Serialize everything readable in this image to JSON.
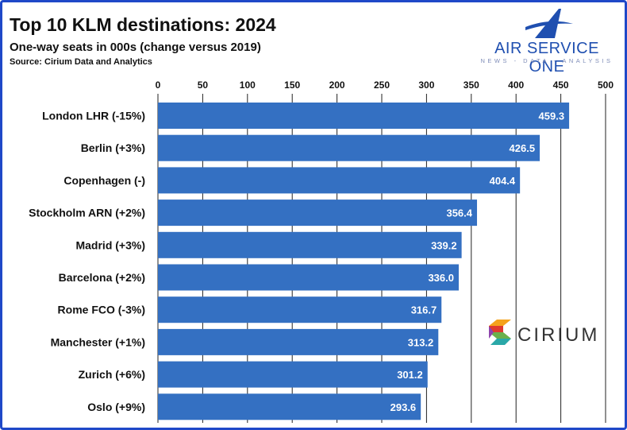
{
  "header": {
    "title": "Top 10 KLM destinations: 2024",
    "subtitle": "One-way seats in 000s (change versus 2019)",
    "source": "Source: Cirium Data and Analytics"
  },
  "logos": {
    "air_service_one": {
      "name": "AIR SERVICE ONE",
      "tagline": "NEWS - DATA - ANALYSIS",
      "color": "#1f4fb0"
    },
    "cirium": {
      "name": "CIRIUM"
    }
  },
  "colors": {
    "bar": "#3470c2",
    "frame": "#1f48c8",
    "grid": "#222222"
  },
  "chart_data": {
    "type": "bar",
    "orientation": "horizontal",
    "categories": [
      "London LHR (-15%)",
      "Berlin (+3%)",
      "Copenhagen (-)",
      "Stockholm ARN (+2%)",
      "Madrid (+3%)",
      "Barcelona (+2%)",
      "Rome FCO (-3%)",
      "Manchester (+1%)",
      "Zurich (+6%)",
      "Oslo (+9%)"
    ],
    "values": [
      459.3,
      426.5,
      404.4,
      356.4,
      339.2,
      336.0,
      316.7,
      313.2,
      301.2,
      293.6
    ],
    "value_labels": [
      "459.3",
      "426.5",
      "404.4",
      "356.4",
      "339.2",
      "336.0",
      "316.7",
      "313.2",
      "301.2",
      "293.6"
    ],
    "xlim": [
      0,
      500
    ],
    "xticks": [
      0,
      50,
      100,
      150,
      200,
      250,
      300,
      350,
      400,
      450,
      500
    ],
    "axis_position": "top",
    "grid": true
  }
}
